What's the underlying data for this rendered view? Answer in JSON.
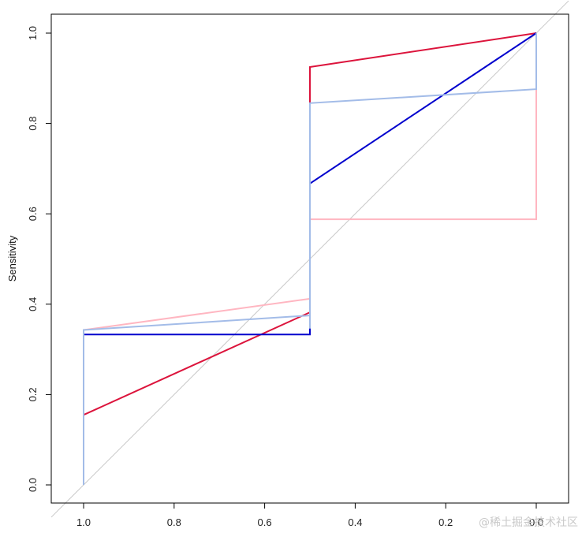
{
  "chart_data": {
    "type": "line",
    "title": "",
    "xlabel": "",
    "ylabel": "Sensitivity",
    "x_reversed": true,
    "xlim": [
      1.0,
      0.0
    ],
    "ylim": [
      0.0,
      1.0
    ],
    "x_ticks": [
      1.0,
      0.8,
      0.6,
      0.4,
      0.2,
      0.0
    ],
    "y_ticks": [
      0.0,
      0.2,
      0.4,
      0.6,
      0.8,
      1.0
    ],
    "x_tick_labels": [
      "1.0",
      "0.8",
      "0.6",
      "0.4",
      "0.2",
      "0.0"
    ],
    "y_tick_labels": [
      "0.0",
      "0.2",
      "0.4",
      "0.6",
      "0.8",
      "1.0"
    ],
    "legend": "none",
    "grid": false,
    "reference_line": {
      "color": "#c8c8c8",
      "from": [
        1.0,
        0.0
      ],
      "to": [
        0.0,
        1.0
      ]
    },
    "series": [
      {
        "color": "#ffb6c1",
        "x": [
          1.0,
          1.0,
          0.5,
          0.5,
          0.5,
          0.0,
          0.0
        ],
        "y": [
          0.0,
          0.343,
          0.412,
          0.375,
          0.588,
          0.588,
          1.0
        ]
      },
      {
        "color": "#dc143c",
        "x": [
          1.0,
          0.5,
          0.5,
          0.5,
          0.0
        ],
        "y": [
          0.155,
          0.382,
          0.846,
          0.925,
          1.0
        ]
      },
      {
        "color": "#0000cd",
        "x": [
          1.0,
          1.0,
          0.5,
          0.5,
          0.5,
          0.0
        ],
        "y": [
          0.0,
          0.333,
          0.333,
          0.375,
          0.667,
          1.0
        ]
      },
      {
        "color": "#a3bce8",
        "x": [
          1.0,
          1.0,
          0.5,
          0.5,
          0.5,
          0.0,
          0.0
        ],
        "y": [
          0.0,
          0.343,
          0.375,
          0.346,
          0.845,
          0.876,
          1.0
        ]
      }
    ]
  },
  "watermark": "@稀土掘金技术社区"
}
